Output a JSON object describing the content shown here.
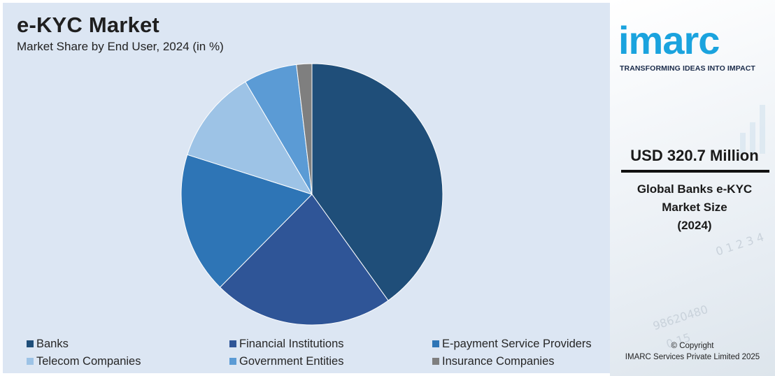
{
  "header": {
    "title": "e-KYC Market",
    "subtitle": "Market Share by End User, 2024 (in %)"
  },
  "chart_data": {
    "type": "pie",
    "title": "e-KYC Market",
    "subtitle": "Market Share by End User, 2024 (in %)",
    "categories": [
      "Banks",
      "Financial Institutions",
      "E-payment Service Providers",
      "Telecom Companies",
      "Government Entities",
      "Insurance Companies"
    ],
    "values": [
      40.1,
      22.3,
      17.5,
      11.6,
      6.6,
      1.9
    ],
    "colors": [
      "#1f4e79",
      "#2f5597",
      "#2e75b6",
      "#9dc3e6",
      "#5b9bd5",
      "#7f7f7f"
    ],
    "legend_position": "bottom",
    "start_angle_deg": 0,
    "direction": "clockwise"
  },
  "sidebar": {
    "logo": "imarc",
    "tagline": "TRANSFORMING IDEAS INTO IMPACT",
    "market_value": "USD 320.7 Million",
    "market_label_lines": [
      "Global Banks e-KYC",
      "Market Size",
      "(2024)"
    ],
    "copyright_lines": [
      "© Copyright",
      "IMARC Services Private Limited 2025"
    ],
    "colors": {
      "logo": "#1aa3de",
      "tagline": "#1a2b4a"
    }
  }
}
